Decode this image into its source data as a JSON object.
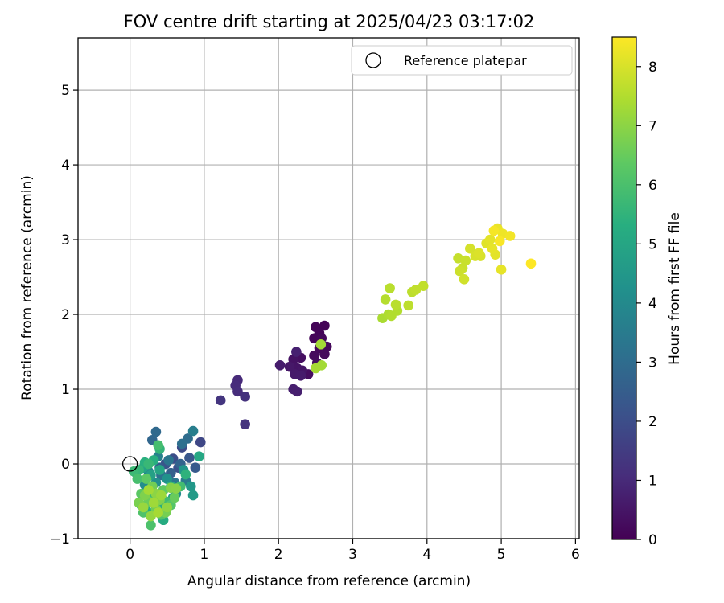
{
  "chart_data": {
    "type": "scatter",
    "title": "FOV centre drift starting at 2025/04/23 03:17:02",
    "xlabel": "Angular distance from reference (arcmin)",
    "ylabel": "Rotation from reference (arcmin)",
    "xlim": [
      -0.7,
      6.05
    ],
    "ylim": [
      -1.0,
      5.7
    ],
    "xticks": [
      0,
      1,
      2,
      3,
      4,
      5,
      6
    ],
    "yticks": [
      -1,
      0,
      1,
      2,
      3,
      4,
      5
    ],
    "grid": true,
    "legend": {
      "position": "top-right",
      "entries": [
        "Reference platepar"
      ]
    },
    "reference_point": {
      "x": 0,
      "y": 0
    },
    "colorbar": {
      "label": "Hours from first FF file",
      "min": 0,
      "max": 8.5,
      "ticks": [
        0,
        1,
        2,
        3,
        4,
        5,
        6,
        7,
        8
      ],
      "colormap": "viridis"
    },
    "points": [
      [
        2.62,
        1.85,
        0.05
      ],
      [
        2.5,
        1.83,
        0.08
      ],
      [
        2.55,
        1.75,
        0.1
      ],
      [
        2.48,
        1.68,
        0.12
      ],
      [
        2.58,
        1.68,
        0.15
      ],
      [
        2.65,
        1.57,
        0.18
      ],
      [
        2.55,
        1.55,
        0.2
      ],
      [
        2.62,
        1.47,
        0.22
      ],
      [
        2.48,
        1.45,
        0.25
      ],
      [
        2.52,
        1.35,
        0.28
      ],
      [
        2.4,
        1.2,
        0.3
      ],
      [
        2.3,
        1.42,
        0.35
      ],
      [
        2.2,
        1.4,
        0.4
      ],
      [
        2.25,
        1.28,
        0.45
      ],
      [
        2.32,
        1.25,
        0.5
      ],
      [
        2.15,
        1.3,
        0.55
      ],
      [
        2.22,
        1.2,
        0.6
      ],
      [
        2.3,
        1.18,
        0.62
      ],
      [
        2.02,
        1.32,
        0.65
      ],
      [
        2.2,
        1.0,
        0.7
      ],
      [
        2.25,
        0.97,
        0.72
      ],
      [
        2.24,
        1.5,
        0.75
      ],
      [
        1.45,
        1.12,
        1.0
      ],
      [
        1.42,
        1.05,
        1.05
      ],
      [
        1.45,
        0.97,
        1.1
      ],
      [
        1.55,
        0.9,
        1.2
      ],
      [
        1.55,
        0.53,
        1.25
      ],
      [
        1.22,
        0.85,
        1.3
      ],
      [
        0.95,
        0.29,
        1.8
      ],
      [
        0.7,
        0.22,
        1.9
      ],
      [
        0.58,
        0.07,
        2.0
      ],
      [
        0.65,
        -0.05,
        2.1
      ],
      [
        0.48,
        0.0,
        2.2
      ],
      [
        0.8,
        0.08,
        2.3
      ],
      [
        0.88,
        -0.05,
        2.4
      ],
      [
        0.4,
        -0.05,
        2.5
      ],
      [
        0.55,
        -0.12,
        2.6
      ],
      [
        0.68,
        0.0,
        2.7
      ],
      [
        0.3,
        0.32,
        2.8
      ],
      [
        0.35,
        0.43,
        2.9
      ],
      [
        0.78,
        0.34,
        3.0
      ],
      [
        0.7,
        0.27,
        3.1
      ],
      [
        0.42,
        -0.15,
        3.2
      ],
      [
        0.52,
        0.05,
        3.3
      ],
      [
        0.6,
        -0.25,
        3.4
      ],
      [
        0.75,
        -0.22,
        3.5
      ],
      [
        0.85,
        0.44,
        3.6
      ],
      [
        0.38,
        0.1,
        3.7
      ],
      [
        0.25,
        -0.1,
        3.8
      ],
      [
        0.45,
        -0.35,
        3.9
      ],
      [
        0.62,
        -0.4,
        4.0
      ],
      [
        0.2,
        -0.28,
        4.1
      ],
      [
        0.35,
        -0.25,
        4.2
      ],
      [
        0.5,
        -0.2,
        4.3
      ],
      [
        0.72,
        -0.08,
        4.4
      ],
      [
        0.82,
        -0.3,
        4.5
      ],
      [
        0.85,
        -0.42,
        4.6
      ],
      [
        0.58,
        -0.45,
        4.7
      ],
      [
        0.28,
        -0.15,
        4.8
      ],
      [
        0.18,
        -0.05,
        4.9
      ],
      [
        0.4,
        -0.08,
        5.0
      ],
      [
        0.93,
        0.1,
        5.05
      ],
      [
        0.15,
        -0.55,
        5.1
      ],
      [
        0.22,
        -0.62,
        5.15
      ],
      [
        0.45,
        -0.75,
        5.2
      ],
      [
        0.38,
        -0.55,
        5.25
      ],
      [
        0.32,
        0.05,
        5.3
      ],
      [
        0.2,
        0.02,
        5.35
      ],
      [
        0.55,
        -0.3,
        5.4
      ],
      [
        0.75,
        -0.14,
        5.45
      ],
      [
        0.08,
        -0.12,
        5.5
      ],
      [
        0.4,
        0.2,
        5.55
      ],
      [
        0.12,
        -0.08,
        5.6
      ],
      [
        0.25,
        0.0,
        5.65
      ],
      [
        0.05,
        -0.1,
        5.7
      ],
      [
        0.3,
        -0.4,
        5.75
      ],
      [
        0.48,
        -0.5,
        5.8
      ],
      [
        0.68,
        -0.3,
        5.85
      ],
      [
        0.38,
        0.25,
        5.9
      ],
      [
        0.1,
        -0.2,
        5.95
      ],
      [
        0.28,
        -0.82,
        6.05
      ],
      [
        0.18,
        -0.65,
        6.1
      ],
      [
        0.42,
        -0.68,
        6.15
      ],
      [
        0.55,
        -0.55,
        6.2
      ],
      [
        0.15,
        -0.4,
        6.3
      ],
      [
        0.22,
        -0.2,
        6.35
      ],
      [
        0.45,
        -0.35,
        6.4
      ],
      [
        0.6,
        -0.45,
        6.5
      ],
      [
        0.25,
        -0.5,
        6.55
      ],
      [
        0.35,
        -0.6,
        6.6
      ],
      [
        0.3,
        -0.3,
        6.65
      ],
      [
        0.48,
        -0.65,
        6.7
      ],
      [
        0.12,
        -0.52,
        6.75
      ],
      [
        0.2,
        -0.42,
        6.8
      ],
      [
        0.4,
        -0.48,
        6.85
      ],
      [
        0.55,
        -0.32,
        6.9
      ],
      [
        0.62,
        -0.33,
        6.95
      ],
      [
        0.35,
        -0.4,
        7.0
      ],
      [
        0.5,
        -0.58,
        7.05
      ],
      [
        0.28,
        -0.7,
        7.1
      ],
      [
        0.18,
        -0.58,
        7.15
      ],
      [
        0.42,
        -0.42,
        7.2
      ],
      [
        0.32,
        -0.52,
        7.25
      ],
      [
        0.25,
        -0.35,
        7.3
      ],
      [
        0.38,
        -0.65,
        7.35
      ],
      [
        2.57,
        1.6,
        7.3
      ],
      [
        2.58,
        1.32,
        7.3
      ],
      [
        2.5,
        1.28,
        7.35
      ],
      [
        3.4,
        1.95,
        7.4
      ],
      [
        3.48,
        2.0,
        7.45
      ],
      [
        3.52,
        1.98,
        7.5
      ],
      [
        3.6,
        2.05,
        7.5
      ],
      [
        3.44,
        2.2,
        7.55
      ],
      [
        3.5,
        2.35,
        7.6
      ],
      [
        3.58,
        2.13,
        7.6
      ],
      [
        3.75,
        2.12,
        7.65
      ],
      [
        3.8,
        2.3,
        7.65
      ],
      [
        3.85,
        2.33,
        7.7
      ],
      [
        3.95,
        2.38,
        7.7
      ],
      [
        4.42,
        2.75,
        7.75
      ],
      [
        4.48,
        2.62,
        7.8
      ],
      [
        4.52,
        2.72,
        7.8
      ],
      [
        4.44,
        2.58,
        7.85
      ],
      [
        4.5,
        2.47,
        7.9
      ],
      [
        4.58,
        2.88,
        7.95
      ],
      [
        4.65,
        2.78,
        8.0
      ],
      [
        4.72,
        2.78,
        8.0
      ],
      [
        4.7,
        2.82,
        8.05
      ],
      [
        4.8,
        2.95,
        8.1
      ],
      [
        4.85,
        3.0,
        8.15
      ],
      [
        4.92,
        2.8,
        8.15
      ],
      [
        4.88,
        2.88,
        8.2
      ],
      [
        5.0,
        2.6,
        8.2
      ],
      [
        4.95,
        3.15,
        8.25
      ],
      [
        5.02,
        3.08,
        8.3
      ],
      [
        5.12,
        3.05,
        8.35
      ],
      [
        4.9,
        3.12,
        8.4
      ],
      [
        4.98,
        2.98,
        8.45
      ],
      [
        5.4,
        2.68,
        8.5
      ]
    ]
  }
}
